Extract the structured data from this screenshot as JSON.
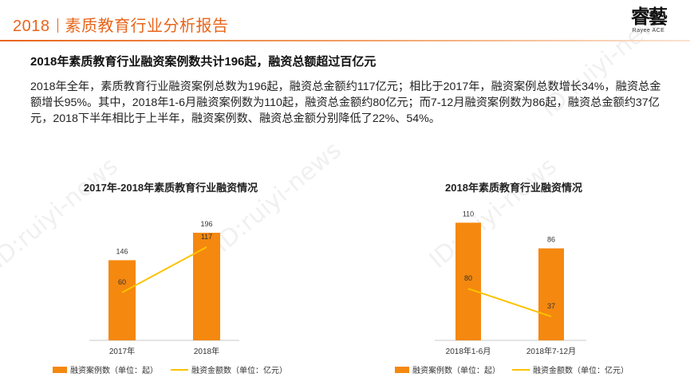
{
  "header": {
    "year": "2018",
    "title": "素质教育行业分析报告",
    "logo_text": "睿藝",
    "logo_sub": "Rayee ACE"
  },
  "headline": "2018年素质教育行业融资案例数共计196起，融资总额超过百亿元",
  "paragraph": "2018年全年，素质教育行业融资案例总数为196起，融资总金额约117亿元；相比于2017年，融资案例总数增长34%，融资总金额增长95%。其中，2018年1-6月融资案例数为110起，融资总金额约80亿元；而7-12月融资案例数为86起，融资总金额约37亿元，2018下半年相比于上半年，融资案例数、融资总金额分别降低了22%、54%。",
  "watermark": "ID:ruiyi-news",
  "colors": {
    "accent": "#e8651a",
    "bar": "#f5880f",
    "line": "#fcc200"
  },
  "chart_data": [
    {
      "type": "bar",
      "title": "2017年-2018年素质教育行业融资情况",
      "categories": [
        "2017年",
        "2018年"
      ],
      "series": [
        {
          "name": "融资案例数（单位：起）",
          "kind": "bar",
          "values": [
            146,
            196
          ]
        },
        {
          "name": "融资金额数（单位：亿元）",
          "kind": "line",
          "values": [
            60,
            117
          ]
        }
      ]
    },
    {
      "type": "bar",
      "title": "2018年素质教育行业融资情况",
      "categories": [
        "2018年1-6月",
        "2018年7-12月"
      ],
      "series": [
        {
          "name": "融资案例数（单位：起）",
          "kind": "bar",
          "values": [
            110,
            86
          ]
        },
        {
          "name": "融资金额数（单位：亿元）",
          "kind": "line",
          "values": [
            80,
            37
          ]
        }
      ]
    }
  ]
}
